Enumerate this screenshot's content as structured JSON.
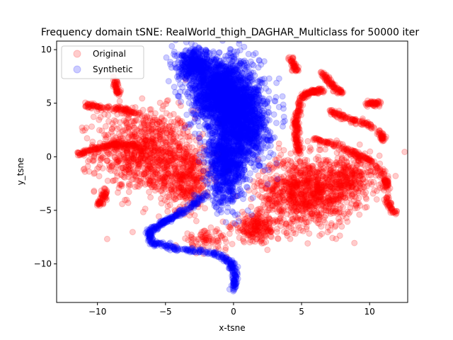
{
  "chart_data": {
    "type": "scatter",
    "title": "Frequency domain tSNE: RealWorld_thigh_DAGHAR_Multiclass for 50000 iter",
    "xlabel": "x-tsne",
    "ylabel": "y_tsne",
    "xlim": [
      -13,
      12.8
    ],
    "ylim": [
      -13.6,
      10.8
    ],
    "xticks": [
      -10,
      -5,
      0,
      5,
      10
    ],
    "yticks": [
      -10,
      -5,
      0,
      5,
      10
    ],
    "xtick_labels": [
      "−10",
      "−5",
      "0",
      "5",
      "10"
    ],
    "ytick_labels": [
      "−10",
      "−5",
      "0",
      "5",
      "10"
    ],
    "grid": false,
    "legend_placement": "top-left",
    "series": [
      {
        "name": "Original",
        "color": "#ff0000",
        "alpha": 0.2,
        "clusters": [
          {
            "kind": "blob",
            "cx": -6.5,
            "cy": 0.5,
            "sx": 2.4,
            "sy": 2.6,
            "n": 900
          },
          {
            "kind": "blob",
            "cx": -3.5,
            "cy": -2.0,
            "sx": 1.3,
            "sy": 2.0,
            "n": 400
          },
          {
            "kind": "blob",
            "cx": 5.3,
            "cy": -3.3,
            "sx": 2.3,
            "sy": 2.2,
            "n": 1000
          },
          {
            "kind": "blob",
            "cx": 8.5,
            "cy": -2.0,
            "sx": 1.5,
            "sy": 1.5,
            "n": 300
          },
          {
            "kind": "blob",
            "cx": 1.7,
            "cy": -6.6,
            "sx": 1.2,
            "sy": 0.9,
            "n": 220
          },
          {
            "kind": "blob",
            "cx": -2.0,
            "cy": -7.8,
            "sx": 1.2,
            "sy": 0.6,
            "n": 80
          },
          {
            "kind": "curve",
            "points": [
              [
                -11.5,
                0.2
              ],
              [
                -10,
                0.8
              ],
              [
                -8.5,
                1.2
              ],
              [
                -7,
                1.0
              ]
            ],
            "n": 160
          },
          {
            "kind": "curve",
            "points": [
              [
                -11,
                4.8
              ],
              [
                -9.5,
                4.6
              ],
              [
                -8,
                4.4
              ],
              [
                -7,
                4.0
              ]
            ],
            "n": 120
          },
          {
            "kind": "curve",
            "points": [
              [
                -9.9,
                -4.5
              ],
              [
                -9.6,
                -3.8
              ],
              [
                -9.3,
                -3.1
              ]
            ],
            "n": 60
          },
          {
            "kind": "curve",
            "points": [
              [
                -8.7,
                7.3
              ],
              [
                -8.6,
                6.5
              ],
              [
                -8.5,
                5.8
              ]
            ],
            "n": 50
          },
          {
            "kind": "curve",
            "points": [
              [
                4.3,
                9.2
              ],
              [
                4.4,
                8.6
              ],
              [
                4.6,
                8.0
              ]
            ],
            "n": 50
          },
          {
            "kind": "curve",
            "points": [
              [
                4.8,
                0.3
              ],
              [
                4.6,
                1.8
              ],
              [
                4.6,
                3.5
              ],
              [
                5.0,
                5.6
              ],
              [
                5.8,
                6.1
              ],
              [
                6.6,
                6.2
              ]
            ],
            "n": 260
          },
          {
            "kind": "curve",
            "points": [
              [
                6.5,
                7.8
              ],
              [
                7.0,
                7.0
              ],
              [
                7.5,
                6.4
              ],
              [
                8.0,
                5.8
              ]
            ],
            "n": 90
          },
          {
            "kind": "curve",
            "points": [
              [
                7.2,
                4.3
              ],
              [
                7.8,
                3.9
              ],
              [
                8.8,
                3.4
              ],
              [
                9.6,
                3.1
              ],
              [
                10.2,
                2.8
              ]
            ],
            "n": 110
          },
          {
            "kind": "curve",
            "points": [
              [
                9.7,
                5.0
              ],
              [
                10.3,
                5.0
              ],
              [
                10.8,
                5.0
              ]
            ],
            "n": 50
          },
          {
            "kind": "curve",
            "points": [
              [
                10.7,
                2.3
              ],
              [
                10.9,
                1.9
              ],
              [
                11.0,
                1.5
              ]
            ],
            "n": 40
          },
          {
            "kind": "curve",
            "points": [
              [
                11.2,
                -3.8
              ],
              [
                11.5,
                -4.6
              ],
              [
                11.9,
                -5.3
              ]
            ],
            "n": 50
          },
          {
            "kind": "curve",
            "points": [
              [
                6.0,
                1.6
              ],
              [
                7.4,
                1.2
              ],
              [
                8.8,
                0.4
              ],
              [
                10.2,
                -0.5
              ],
              [
                11.2,
                -2.0
              ],
              [
                11.3,
                -3.0
              ]
            ],
            "n": 200
          }
        ]
      },
      {
        "name": "Synthetic",
        "color": "#0000ff",
        "alpha": 0.2,
        "clusters": [
          {
            "kind": "blob",
            "cx": -1.0,
            "cy": 6.0,
            "sx": 1.4,
            "sy": 2.2,
            "n": 1600
          },
          {
            "kind": "blob",
            "cx": 0.8,
            "cy": 3.5,
            "sx": 1.2,
            "sy": 2.6,
            "n": 1200
          },
          {
            "kind": "blob",
            "cx": -0.5,
            "cy": -0.5,
            "sx": 1.0,
            "sy": 2.6,
            "n": 900
          },
          {
            "kind": "blob",
            "cx": -2.8,
            "cy": 8.5,
            "sx": 0.9,
            "sy": 1.0,
            "n": 400
          },
          {
            "kind": "curve",
            "points": [
              [
                -2.0,
                -3.5
              ],
              [
                -3.5,
                -5.0
              ],
              [
                -5.0,
                -6.0
              ],
              [
                -6.2,
                -7.0
              ],
              [
                -6.0,
                -8.0
              ],
              [
                -4.0,
                -8.6
              ],
              [
                -1.5,
                -9.0
              ],
              [
                -0.2,
                -9.8
              ],
              [
                0.1,
                -11.0
              ],
              [
                0.0,
                -12.4
              ]
            ],
            "n": 500
          }
        ]
      }
    ]
  }
}
